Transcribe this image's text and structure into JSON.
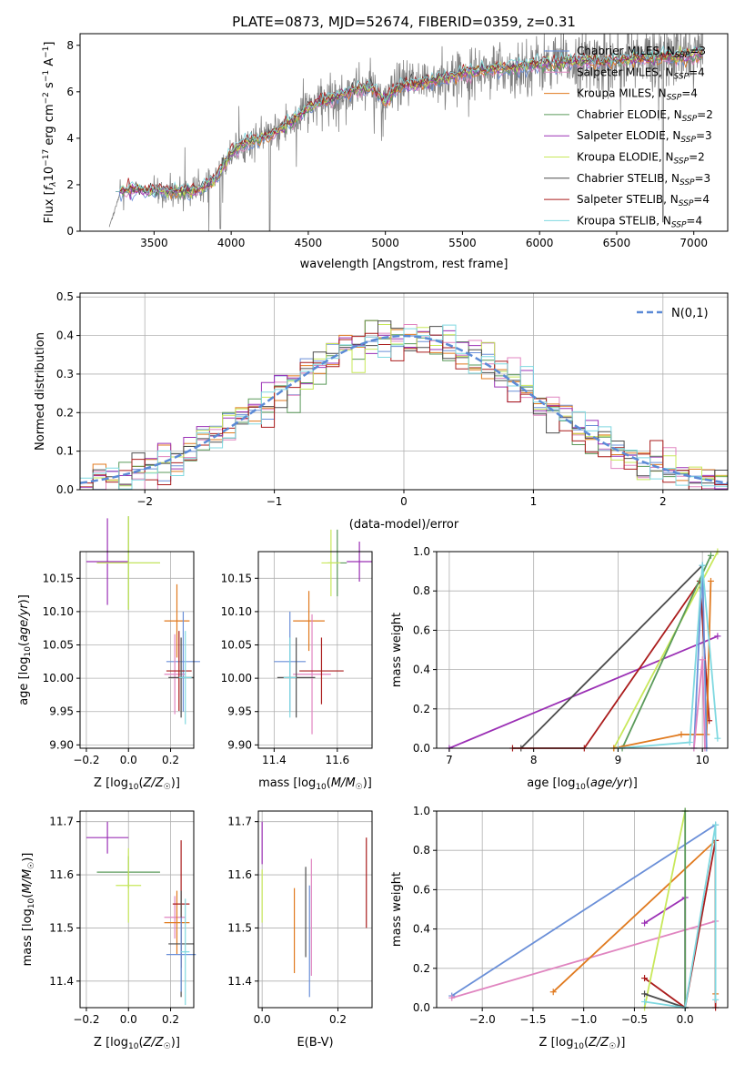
{
  "figure": {
    "title": "PLATE=0873, MJD=52674, FIBERID=0359, z=0.31",
    "panel_labels": {
      "hist_legend": "N(0,1)"
    }
  },
  "colors": {
    "chabrier_miles": "#6a8fd8",
    "salpeter_miles": "#e085c0",
    "kroupa_miles": "#e07a1f",
    "chabrier_elodie": "#5a9a5a",
    "salpeter_elodie": "#9b30b5",
    "kroupa_elodie": "#c8e85a",
    "chabrier_stelib": "#4d4d4d",
    "salpeter_stelib": "#aa1c1c",
    "kroupa_stelib": "#7fd8e0",
    "data": "#808080",
    "normal": "#5b8ad6",
    "grid": "#b0b0b0"
  },
  "chart_data": [
    {
      "type": "line",
      "name": "spectrum",
      "xlabel": "wavelength [Angstrom, rest frame]",
      "ylabel": "Flux [f_λ 10^-17 erg cm^-2 s^-1 A^-1]",
      "xlim": [
        3020,
        7220
      ],
      "ylim": [
        0,
        8.5
      ],
      "xticks": [
        3500,
        4000,
        4500,
        5000,
        5500,
        6000,
        6500,
        7000
      ],
      "yticks": [
        0,
        2,
        4,
        6,
        8
      ],
      "grid": false,
      "legend_position": "top-right",
      "data_shape_x": [
        3200,
        3280,
        3400,
        3500,
        3600,
        3700,
        3800,
        3900,
        3950,
        4000,
        4100,
        4200,
        4300,
        4400,
        4500,
        4600,
        4700,
        4800,
        4900,
        5000,
        5100,
        5200,
        5300,
        5400,
        5500,
        5600,
        5700,
        5800,
        5900,
        6000,
        6100,
        6200,
        6300,
        6400,
        6500,
        6600,
        6700,
        6800,
        6900,
        7000
      ],
      "data_shape_y": [
        0,
        1.7,
        1.8,
        1.7,
        1.75,
        1.7,
        1.8,
        2.2,
        2.8,
        3.4,
        3.8,
        4.0,
        4.3,
        4.8,
        5.3,
        5.6,
        5.8,
        6.1,
        6.2,
        5.6,
        6.3,
        6.3,
        6.5,
        6.6,
        6.8,
        6.9,
        7.0,
        7.0,
        7.1,
        7.2,
        7.2,
        7.3,
        7.3,
        7.3,
        7.4,
        7.4,
        7.4,
        7.5,
        7.5,
        7.6
      ],
      "legend": [
        "Chabrier MILES, N_SSP=3",
        "Salpeter MILES, N_SSP=4",
        "Kroupa MILES, N_SSP=4",
        "Chabrier ELODIE, N_SSP=2",
        "Salpeter ELODIE, N_SSP=3",
        "Kroupa ELODIE, N_SSP=2",
        "Chabrier STELIB, N_SSP=3",
        "Salpeter STELIB, N_SSP=4",
        "Kroupa STELIB, N_SSP=4"
      ]
    },
    {
      "type": "histogram",
      "name": "residuals",
      "xlabel": "(data-model)/error",
      "ylabel": "Normed distribution",
      "xlim": [
        -2.5,
        2.5
      ],
      "ylim": [
        0,
        0.51
      ],
      "xticks": [
        -2,
        -1,
        0,
        1,
        2
      ],
      "yticks": [
        0.0,
        0.1,
        0.2,
        0.3,
        0.4,
        0.5
      ],
      "grid": true,
      "bin_width": 0.1,
      "legend": [
        "N(0,1)"
      ],
      "legend_position": "top-right"
    },
    {
      "type": "scatter",
      "name": "age_vs_Z",
      "xlabel": "Z [log10(Z/Z☉)]",
      "ylabel": "age [log10(age/yr)]",
      "xlim": [
        -0.23,
        0.31
      ],
      "ylim": [
        9.895,
        10.19
      ],
      "xticks": [
        -0.2,
        0.0,
        0.2
      ],
      "yticks": [
        9.9,
        9.95,
        10.0,
        10.05,
        10.1,
        10.15
      ],
      "grid": true,
      "points": [
        {
          "model": "salpeter_elodie",
          "x": -0.1,
          "y": 10.175,
          "xerr": 0.1,
          "yerr": 0.065
        },
        {
          "model": "chabrier_elodie",
          "x": 0.0,
          "y": 10.173,
          "xerr": 0.15,
          "yerr": 0.07
        },
        {
          "model": "kroupa_elodie",
          "x": 0.0,
          "y": 10.173,
          "xerr": 0.15,
          "yerr": 0.07
        },
        {
          "model": "kroupa_miles",
          "x": 0.23,
          "y": 10.086,
          "xerr": 0.06,
          "yerr": 0.055
        },
        {
          "model": "chabrier_miles",
          "x": 0.26,
          "y": 10.025,
          "xerr": 0.08,
          "yerr": 0.075
        },
        {
          "model": "salpeter_miles",
          "x": 0.22,
          "y": 10.006,
          "xerr": 0.05,
          "yerr": 0.06
        },
        {
          "model": "salpeter_stelib",
          "x": 0.24,
          "y": 10.011,
          "xerr": 0.06,
          "yerr": 0.06
        },
        {
          "model": "chabrier_stelib",
          "x": 0.25,
          "y": 10.001,
          "xerr": 0.06,
          "yerr": 0.06
        },
        {
          "model": "kroupa_stelib",
          "x": 0.27,
          "y": 10.001,
          "xerr": 0.03,
          "yerr": 0.07
        }
      ]
    },
    {
      "type": "scatter",
      "name": "age_vs_mass",
      "xlabel": "mass [log10(M/M☉)]",
      "ylabel": "",
      "xlim": [
        11.35,
        11.71
      ],
      "ylim": [
        9.895,
        10.19
      ],
      "xticks": [
        11.4,
        11.6
      ],
      "yticks": [
        9.9,
        9.95,
        10.0,
        10.05,
        10.1,
        10.15
      ],
      "grid": true,
      "points": [
        {
          "model": "salpeter_elodie",
          "x": 11.67,
          "y": 10.175,
          "xerr": 0.04,
          "yerr": 0.03
        },
        {
          "model": "chabrier_elodie",
          "x": 11.6,
          "y": 10.173,
          "xerr": 0.03,
          "yerr": 0.05
        },
        {
          "model": "kroupa_elodie",
          "x": 11.58,
          "y": 10.173,
          "xerr": 0.03,
          "yerr": 0.05
        },
        {
          "model": "kroupa_miles",
          "x": 11.51,
          "y": 10.086,
          "xerr": 0.05,
          "yerr": 0.045
        },
        {
          "model": "chabrier_miles",
          "x": 11.45,
          "y": 10.025,
          "xerr": 0.05,
          "yerr": 0.075
        },
        {
          "model": "salpeter_miles",
          "x": 11.52,
          "y": 10.006,
          "xerr": 0.06,
          "yerr": 0.09
        },
        {
          "model": "salpeter_stelib",
          "x": 11.55,
          "y": 10.011,
          "xerr": 0.07,
          "yerr": 0.05
        },
        {
          "model": "chabrier_stelib",
          "x": 11.47,
          "y": 10.001,
          "xerr": 0.06,
          "yerr": 0.06
        },
        {
          "model": "kroupa_stelib",
          "x": 11.45,
          "y": 10.001,
          "xerr": 0.02,
          "yerr": 0.06
        }
      ]
    },
    {
      "type": "line",
      "name": "mass_weight_vs_age",
      "xlabel": "age [log10(age/yr)]",
      "ylabel": "mass weight",
      "xlim": [
        6.85,
        10.3
      ],
      "ylim": [
        0,
        1.0
      ],
      "xticks": [
        7,
        8,
        9,
        10
      ],
      "yticks": [
        0.0,
        0.2,
        0.4,
        0.6,
        0.8,
        1.0
      ],
      "grid": true,
      "series": [
        {
          "model": "salpeter_elodie",
          "x": [
            7.0,
            10.18
          ],
          "y": [
            0.0,
            0.57
          ]
        },
        {
          "model": "chabrier_stelib",
          "x": [
            7.85,
            10.0
          ],
          "y": [
            0.0,
            0.93
          ]
        },
        {
          "model": "salpeter_stelib",
          "x": [
            7.75,
            8.6,
            9.97,
            10.08
          ],
          "y": [
            0.0,
            0.0,
            0.85,
            0.14
          ]
        },
        {
          "model": "kroupa_elodie",
          "x": [
            8.95,
            10.18
          ],
          "y": [
            0.0,
            1.0
          ]
        },
        {
          "model": "chabrier_elodie",
          "x": [
            9.05,
            10.1
          ],
          "y": [
            0.0,
            0.98
          ]
        },
        {
          "model": "kroupa_miles",
          "x": [
            8.95,
            9.75,
            10.05,
            10.1
          ],
          "y": [
            0.0,
            0.07,
            0.07,
            0.85
          ]
        },
        {
          "model": "chabrier_miles",
          "x": [
            9.9,
            10.0,
            10.05
          ],
          "y": [
            0.0,
            0.93,
            0.0
          ]
        },
        {
          "model": "salpeter_miles",
          "x": [
            9.9,
            10.0,
            10.03
          ],
          "y": [
            0.0,
            0.45,
            0.0
          ]
        },
        {
          "model": "kroupa_stelib",
          "x": [
            9.0,
            9.85,
            10.0,
            10.18
          ],
          "y": [
            0.0,
            0.03,
            0.93,
            0.05
          ]
        }
      ]
    },
    {
      "type": "scatter",
      "name": "mass_vs_Z",
      "xlabel": "Z [log10(Z/Z☉)]",
      "ylabel": "mass [log10(M/M☉)]",
      "xlim": [
        -0.23,
        0.31
      ],
      "ylim": [
        11.35,
        11.72
      ],
      "xticks": [
        -0.2,
        0.0,
        0.2
      ],
      "yticks": [
        11.4,
        11.5,
        11.6,
        11.7
      ],
      "grid": true,
      "points": [
        {
          "model": "salpeter_elodie",
          "x": -0.1,
          "y": 11.67,
          "xerr": 0.1,
          "yerr": 0.03
        },
        {
          "model": "chabrier_elodie",
          "x": 0.0,
          "y": 11.605,
          "xerr": 0.15,
          "yerr": 0.03
        },
        {
          "model": "kroupa_elodie",
          "x": 0.0,
          "y": 11.58,
          "xerr": 0.06,
          "yerr": 0.07
        },
        {
          "model": "salpeter_miles",
          "x": 0.22,
          "y": 11.52,
          "xerr": 0.05,
          "yerr": 0.04
        },
        {
          "model": "kroupa_miles",
          "x": 0.23,
          "y": 11.51,
          "xerr": 0.06,
          "yerr": 0.06
        },
        {
          "model": "salpeter_stelib",
          "x": 0.25,
          "y": 11.545,
          "xerr": 0.04,
          "yerr": 0.12
        },
        {
          "model": "chabrier_stelib",
          "x": 0.25,
          "y": 11.47,
          "xerr": 0.06,
          "yerr": 0.1
        },
        {
          "model": "chabrier_miles",
          "x": 0.25,
          "y": 11.45,
          "xerr": 0.07,
          "yerr": 0.07
        },
        {
          "model": "kroupa_stelib",
          "x": 0.27,
          "y": 11.455,
          "xerr": 0.02,
          "yerr": 0.1
        }
      ]
    },
    {
      "type": "errorbar",
      "name": "mass_vs_EBV",
      "xlabel": "E(B-V)",
      "ylabel": "",
      "xlim": [
        -0.01,
        0.29
      ],
      "ylim": [
        11.35,
        11.72
      ],
      "xticks": [
        0.0,
        0.2
      ],
      "yticks": [
        11.4,
        11.5,
        11.6,
        11.7
      ],
      "grid": true,
      "points": [
        {
          "model": "salpeter_elodie",
          "x": 0.0,
          "y": 11.66,
          "yerr": 0.04
        },
        {
          "model": "kroupa_elodie",
          "x": 0.0,
          "y": 11.56,
          "yerr": 0.05
        },
        {
          "model": "kroupa_miles",
          "x": 0.085,
          "y": 11.495,
          "yerr": 0.08
        },
        {
          "model": "chabrier_stelib",
          "x": 0.115,
          "y": 11.53,
          "yerr": 0.085
        },
        {
          "model": "chabrier_miles",
          "x": 0.125,
          "y": 11.475,
          "yerr": 0.105
        },
        {
          "model": "salpeter_miles",
          "x": 0.13,
          "y": 11.52,
          "yerr": 0.11
        },
        {
          "model": "salpeter_stelib",
          "x": 0.275,
          "y": 11.585,
          "yerr": 0.085
        }
      ]
    },
    {
      "type": "line",
      "name": "mass_weight_vs_Z",
      "xlabel": "Z [log10(Z/Z☉)]",
      "ylabel": "mass weight",
      "xlim": [
        -2.45,
        0.42
      ],
      "ylim": [
        0,
        1.0
      ],
      "xticks": [
        -2.0,
        -1.5,
        -1.0,
        -0.5,
        0.0
      ],
      "yticks": [
        0.0,
        0.2,
        0.4,
        0.6,
        0.8,
        1.0
      ],
      "grid": true,
      "series": [
        {
          "model": "chabrier_miles",
          "x": [
            -2.3,
            0.3
          ],
          "y": [
            0.06,
            0.93
          ]
        },
        {
          "model": "salpeter_miles",
          "x": [
            -2.3,
            0.3
          ],
          "y": [
            0.05,
            0.44
          ]
        },
        {
          "model": "kroupa_miles",
          "x": [
            -1.3,
            0.3,
            0.3
          ],
          "y": [
            0.08,
            0.85,
            0.07
          ]
        },
        {
          "model": "salpeter_elodie",
          "x": [
            -0.4,
            0.0,
            0.0
          ],
          "y": [
            0.43,
            0.56,
            0.0
          ]
        },
        {
          "model": "salpeter_stelib",
          "x": [
            -0.4,
            0.0,
            0.3,
            0.3
          ],
          "y": [
            0.15,
            0.0,
            0.85,
            0.0
          ]
        },
        {
          "model": "kroupa_elodie",
          "x": [
            -0.4,
            0.0
          ],
          "y": [
            0.0,
            1.0
          ]
        },
        {
          "model": "chabrier_elodie",
          "x": [
            0.0,
            0.0
          ],
          "y": [
            0.0,
            1.0
          ]
        },
        {
          "model": "chabrier_stelib",
          "x": [
            -0.4,
            0.0
          ],
          "y": [
            0.07,
            0.0
          ]
        },
        {
          "model": "kroupa_stelib",
          "x": [
            -0.4,
            0.0,
            0.3,
            0.3
          ],
          "y": [
            0.03,
            0.0,
            0.93,
            0.04
          ]
        }
      ]
    }
  ]
}
